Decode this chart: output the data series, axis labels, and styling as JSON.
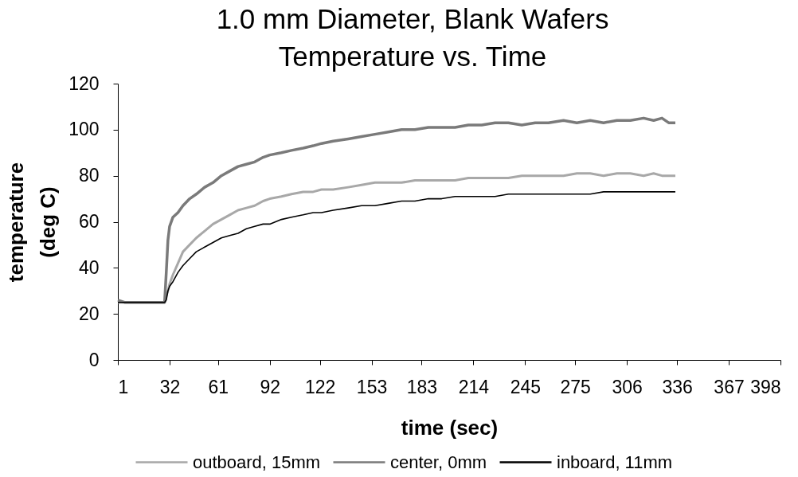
{
  "chart_data": {
    "type": "line",
    "title": "1.0 mm Diameter, Blank Wafers\nTemperature vs. Time",
    "xlabel": "time (sec)",
    "ylabel": "temperature\n(deg C)",
    "x": [
      1,
      5,
      10,
      15,
      20,
      25,
      29,
      30,
      31,
      32,
      34,
      37,
      40,
      44,
      48,
      53,
      58,
      63,
      68,
      73,
      78,
      83,
      88,
      92,
      99,
      105,
      112,
      118,
      123,
      130,
      139,
      147,
      155,
      163,
      171,
      179,
      187,
      195,
      203,
      211,
      219,
      227,
      235,
      243,
      251,
      259,
      268,
      276,
      284,
      292,
      300,
      308,
      316,
      322,
      327,
      331,
      335
    ],
    "series": [
      {
        "name": "outboard, 15mm",
        "color": "#a8a8a8",
        "values": [
          25,
          25,
          25,
          25,
          25,
          25,
          25,
          28,
          30,
          33,
          37,
          42,
          47,
          50,
          53,
          56,
          59,
          61,
          63,
          65,
          66,
          67,
          69,
          70,
          71,
          72,
          73,
          73,
          74,
          74,
          75,
          76,
          77,
          77,
          77,
          78,
          78,
          78,
          78,
          79,
          79,
          79,
          79,
          80,
          80,
          80,
          80,
          81,
          81,
          80,
          81,
          81,
          80,
          81,
          80,
          80,
          80
        ]
      },
      {
        "name": "center, 0mm",
        "color": "#7a7a7a",
        "values": [
          26,
          25,
          25,
          25,
          25,
          25,
          25,
          38,
          52,
          58,
          62,
          64,
          67,
          70,
          72,
          75,
          77,
          80,
          82,
          84,
          85,
          86,
          88,
          89,
          90,
          91,
          92,
          93,
          94,
          95,
          96,
          97,
          98,
          99,
          100,
          100,
          101,
          101,
          101,
          102,
          102,
          103,
          103,
          102,
          103,
          103,
          104,
          103,
          104,
          103,
          104,
          104,
          105,
          104,
          105,
          103,
          103
        ]
      },
      {
        "name": "inboard, 11mm",
        "color": "#000000",
        "values": [
          25,
          25,
          25,
          25,
          25,
          25,
          25,
          26,
          30,
          32,
          34,
          38,
          41,
          44,
          47,
          49,
          51,
          53,
          54,
          55,
          57,
          58,
          59,
          59,
          61,
          62,
          63,
          64,
          64,
          65,
          66,
          67,
          67,
          68,
          69,
          69,
          70,
          70,
          71,
          71,
          71,
          71,
          72,
          72,
          72,
          72,
          72,
          72,
          72,
          73,
          73,
          73,
          73,
          73,
          73,
          73,
          73
        ]
      }
    ],
    "xlim": [
      1,
      398
    ],
    "xticks": [
      1,
      32,
      61,
      92,
      122,
      153,
      183,
      214,
      245,
      275,
      306,
      336,
      367,
      398
    ],
    "ylim": [
      0,
      120
    ],
    "yticks": [
      0,
      20,
      40,
      60,
      80,
      100,
      120
    ],
    "legend": "bottom"
  }
}
